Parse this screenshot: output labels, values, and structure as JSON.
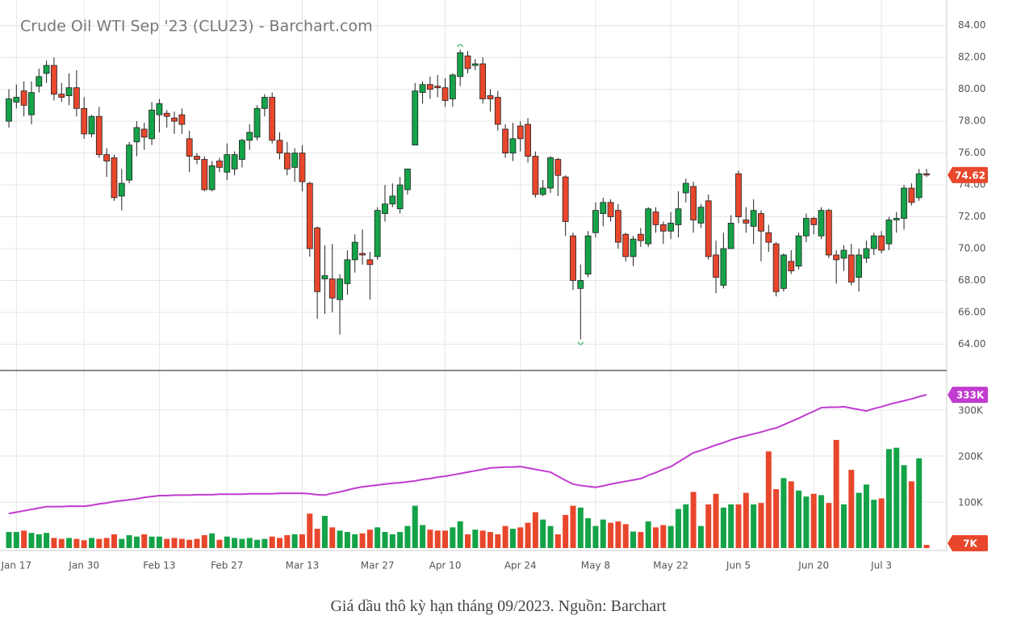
{
  "chart_data": {
    "type": "candlestick",
    "title": "Crude Oil WTI Sep '23 (CLU23) - Barchart.com",
    "x": [
      null,
      "Jan 17",
      null,
      null,
      null,
      null,
      null,
      null,
      null,
      null,
      "Jan 30",
      null,
      null,
      null,
      null,
      null,
      null,
      null,
      null,
      null,
      "Feb 13",
      null,
      null,
      null,
      null,
      null,
      null,
      null,
      null,
      "Feb 27",
      null,
      null,
      null,
      null,
      null,
      null,
      null,
      null,
      null,
      "Mar 13",
      null,
      null,
      null,
      null,
      null,
      null,
      null,
      null,
      null,
      "Mar 27",
      null,
      null,
      null,
      null,
      null,
      null,
      null,
      null,
      "Apr 10",
      null,
      null,
      null,
      null,
      null,
      null,
      null,
      null,
      null,
      "Apr 24",
      null,
      null,
      null,
      null,
      null,
      null,
      null,
      null,
      null,
      "May 8",
      null,
      null,
      null,
      null,
      null,
      null,
      null,
      null,
      null,
      "May 22",
      null,
      null,
      null,
      null,
      null,
      null,
      null,
      null,
      "Jun 5",
      null,
      null,
      null,
      null,
      null,
      null,
      null,
      null,
      null,
      "Jun 20",
      null,
      null,
      null,
      null,
      null,
      null,
      null,
      null,
      "Jul 3",
      null,
      null,
      null,
      null,
      null,
      null
    ],
    "open": [
      78.0,
      79.2,
      79.9,
      78.4,
      80.2,
      81.0,
      81.5,
      79.7,
      79.6,
      80.1,
      78.8,
      77.2,
      78.3,
      75.9,
      75.7,
      73.3,
      74.3,
      76.7,
      77.5,
      76.9,
      78.4,
      78.5,
      78.2,
      78.4,
      76.9,
      75.8,
      75.6,
      73.7,
      75.5,
      74.8,
      75.0,
      75.6,
      76.8,
      77.0,
      78.8,
      79.5,
      76.8,
      76.0,
      75.1,
      76.0,
      74.1,
      71.3,
      68.1,
      68.1,
      66.8,
      67.8,
      69.3,
      69.7,
      69.3,
      69.5,
      72.2,
      72.8,
      72.5,
      73.7,
      76.5,
      79.8,
      80.3,
      80.2,
      80.1,
      79.4,
      80.8,
      82.1,
      81.5,
      81.6,
      79.6,
      79.5,
      77.5,
      76.0,
      77.7,
      77.8,
      75.8,
      73.4,
      73.8,
      75.6,
      74.5,
      70.8,
      67.5,
      68.4,
      71.0,
      72.2,
      72.9,
      72.4,
      70.9,
      69.5,
      70.9,
      70.3,
      72.3,
      71.5,
      71.1,
      71.5,
      73.5,
      73.9,
      71.6,
      73.0,
      69.6,
      67.7,
      70.0,
      74.7,
      71.8,
      71.4,
      72.2,
      71.0,
      70.3,
      67.5,
      69.2,
      68.9,
      70.8,
      71.9,
      70.8,
      72.4,
      69.6,
      69.4,
      69.6,
      68.2,
      69.4,
      70.0,
      70.8,
      70.3,
      71.8,
      71.9,
      73.8,
      73.2,
      74.7
    ],
    "high": [
      80.0,
      80.3,
      80.5,
      80.5,
      81.3,
      81.8,
      82.0,
      80.4,
      81.0,
      81.2,
      79.5,
      78.4,
      78.9,
      76.3,
      75.9,
      75.0,
      76.7,
      78.0,
      77.9,
      79.2,
      79.4,
      78.7,
      78.6,
      78.8,
      77.4,
      76.0,
      75.8,
      75.5,
      75.7,
      76.6,
      76.1,
      76.9,
      77.8,
      79.0,
      79.7,
      79.8,
      77.3,
      76.7,
      76.3,
      76.5,
      74.2,
      71.4,
      70.2,
      70.3,
      68.4,
      69.9,
      70.9,
      71.2,
      69.8,
      72.6,
      74.0,
      74.1,
      74.5,
      75.0,
      80.4,
      80.5,
      80.8,
      80.9,
      80.7,
      81.0,
      82.5,
      82.4,
      81.9,
      82.0,
      80.0,
      79.9,
      77.8,
      77.9,
      78.0,
      78.2,
      76.1,
      74.3,
      75.8,
      75.7,
      74.6,
      71.0,
      69.0,
      71.1,
      72.9,
      73.2,
      73.1,
      72.8,
      71.0,
      70.8,
      71.3,
      72.6,
      72.6,
      71.7,
      72.3,
      73.6,
      74.4,
      74.2,
      72.8,
      73.4,
      70.5,
      71.0,
      72.1,
      74.9,
      72.6,
      73.1,
      72.4,
      71.5,
      70.4,
      69.7,
      69.9,
      71.0,
      72.2,
      72.0,
      72.6,
      72.5,
      69.9,
      70.2,
      70.3,
      70.0,
      70.5,
      71.0,
      71.1,
      72.0,
      72.3,
      74.0,
      74.1,
      75.0,
      75.0
    ],
    "low": [
      77.6,
      78.8,
      78.3,
      77.8,
      79.8,
      80.4,
      79.3,
      79.2,
      79.0,
      78.3,
      76.9,
      77.0,
      75.7,
      74.5,
      73.0,
      72.4,
      74.1,
      75.8,
      76.2,
      76.5,
      77.3,
      77.6,
      77.2,
      77.2,
      74.8,
      75.3,
      73.6,
      73.6,
      74.8,
      74.3,
      74.6,
      75.1,
      76.2,
      76.8,
      78.3,
      76.6,
      75.6,
      74.6,
      74.2,
      73.6,
      69.5,
      65.6,
      65.9,
      66.0,
      64.6,
      67.1,
      68.5,
      69.0,
      66.8,
      69.3,
      71.7,
      72.6,
      72.2,
      73.4,
      76.5,
      79.1,
      79.4,
      79.5,
      78.9,
      78.9,
      80.2,
      81.0,
      81.2,
      79.1,
      78.6,
      77.4,
      75.7,
      75.5,
      76.1,
      75.4,
      73.2,
      73.3,
      73.5,
      73.3,
      70.8,
      67.4,
      64.3,
      68.2,
      70.7,
      71.4,
      71.7,
      70.0,
      69.2,
      68.9,
      70.1,
      70.1,
      71.0,
      70.3,
      70.6,
      70.7,
      72.9,
      71.0,
      71.3,
      69.3,
      67.2,
      67.5,
      70.0,
      71.6,
      71.0,
      70.3,
      69.2,
      69.8,
      67.0,
      67.3,
      68.4,
      68.7,
      70.4,
      70.9,
      70.6,
      69.4,
      67.8,
      68.6,
      67.7,
      67.3,
      69.1,
      69.6,
      69.7,
      69.9,
      71.0,
      71.2,
      72.7,
      73.0,
      74.5
    ],
    "close": [
      79.4,
      79.5,
      79.0,
      79.8,
      80.8,
      81.5,
      79.7,
      79.5,
      80.1,
      78.8,
      77.2,
      78.3,
      75.9,
      75.5,
      73.2,
      74.1,
      76.5,
      77.6,
      77.0,
      78.7,
      79.1,
      78.3,
      78.0,
      77.8,
      75.8,
      75.6,
      73.7,
      75.2,
      75.1,
      75.9,
      75.9,
      76.8,
      77.3,
      78.8,
      79.5,
      76.8,
      76.0,
      75.0,
      76.0,
      74.2,
      70.0,
      67.3,
      68.3,
      66.9,
      68.1,
      69.3,
      70.4,
      69.6,
      69.0,
      72.4,
      72.8,
      73.3,
      74.0,
      75.0,
      79.9,
      80.3,
      80.0,
      80.1,
      79.3,
      80.9,
      82.3,
      81.3,
      81.6,
      79.4,
      79.4,
      77.8,
      76.0,
      76.9,
      76.9,
      75.8,
      73.4,
      73.8,
      75.7,
      74.6,
      71.7,
      68.0,
      68.0,
      70.8,
      72.4,
      72.9,
      72.0,
      70.4,
      69.5,
      70.6,
      70.5,
      72.5,
      71.5,
      71.1,
      71.6,
      72.5,
      74.1,
      71.8,
      72.6,
      69.5,
      68.2,
      70.0,
      71.6,
      72.0,
      71.6,
      72.4,
      71.1,
      70.4,
      67.3,
      69.6,
      68.6,
      70.8,
      71.9,
      71.5,
      72.4,
      69.6,
      69.3,
      69.9,
      67.9,
      69.6,
      70.0,
      70.8,
      69.9,
      71.8,
      71.9,
      73.8,
      72.9,
      74.7,
      74.62
    ],
    "up_color": "#14a348",
    "down_color": "#e8472c",
    "ylim": [
      62.4,
      85.1
    ],
    "yticks": [
      {
        "value": 64,
        "label": "64.00"
      },
      {
        "value": 66,
        "label": "66.00"
      },
      {
        "value": 68,
        "label": "68.00"
      },
      {
        "value": 70,
        "label": "70.00"
      },
      {
        "value": 72,
        "label": "72.00"
      },
      {
        "value": 74,
        "label": "74.00"
      },
      {
        "value": 76,
        "label": "76.00"
      },
      {
        "value": 78,
        "label": "78.00"
      },
      {
        "value": 80,
        "label": "80.00"
      },
      {
        "value": 82,
        "label": "82.00"
      },
      {
        "value": 84,
        "label": "84.00"
      }
    ],
    "grid": true,
    "volume": {
      "values": [
        35,
        35,
        38,
        33,
        30,
        33,
        22,
        20,
        22,
        20,
        17,
        22,
        20,
        22,
        30,
        20,
        28,
        25,
        30,
        25,
        25,
        20,
        22,
        20,
        18,
        20,
        28,
        32,
        18,
        25,
        22,
        20,
        22,
        18,
        20,
        25,
        22,
        28,
        30,
        30,
        75,
        42,
        70,
        45,
        38,
        35,
        30,
        32,
        40,
        45,
        35,
        30,
        35,
        48,
        92,
        50,
        40,
        38,
        38,
        45,
        58,
        30,
        40,
        38,
        35,
        30,
        48,
        42,
        45,
        55,
        78,
        62,
        48,
        30,
        72,
        92,
        88,
        65,
        48,
        62,
        55,
        58,
        52,
        36,
        35,
        58,
        45,
        50,
        48,
        85,
        95,
        122,
        48,
        95,
        118,
        88,
        95,
        95,
        120,
        95,
        98,
        210,
        128,
        152,
        145,
        125,
        112,
        118,
        115,
        98,
        235,
        95,
        170,
        120,
        138,
        105,
        108,
        215,
        218,
        180,
        145,
        195,
        7
      ],
      "value_labels": [
        null,
        null,
        null,
        null,
        null,
        null,
        null,
        null,
        null,
        null,
        null,
        null,
        null,
        null,
        null,
        null,
        null,
        null,
        null,
        null,
        null,
        null,
        null,
        null,
        null,
        null,
        null,
        null,
        null,
        null,
        null,
        null,
        null,
        null,
        null,
        null,
        null,
        null,
        null,
        null,
        null,
        null,
        null,
        null,
        null,
        null,
        null,
        null,
        null,
        null,
        null,
        null,
        null,
        null,
        null,
        null,
        null,
        null,
        null,
        null,
        null,
        null,
        null,
        null,
        null,
        null,
        null,
        null,
        null,
        null,
        null,
        null,
        null,
        null,
        null,
        null,
        null,
        null,
        null,
        null,
        null,
        null,
        null,
        null,
        null,
        null,
        null,
        null,
        null,
        null,
        null,
        null,
        null,
        null,
        null,
        null,
        null,
        null,
        null,
        null,
        null,
        null,
        null,
        null,
        null,
        null,
        null,
        null,
        null,
        null,
        null,
        null,
        null,
        null,
        null,
        null,
        null,
        null,
        null,
        null,
        null,
        null,
        "7K"
      ],
      "ylim": [
        0,
        384
      ],
      "yticks": [
        {
          "value": 100,
          "label": "100K"
        },
        {
          "value": 200,
          "label": "200K"
        },
        {
          "value": 300,
          "label": "300K"
        }
      ]
    },
    "line": {
      "color": "#c13bd0",
      "values": [
        75,
        78,
        81,
        84,
        87,
        90,
        90,
        90,
        91,
        91,
        91,
        93,
        96,
        98,
        101,
        103,
        105,
        107,
        110,
        112,
        114,
        114,
        115,
        115,
        115,
        116,
        116,
        116,
        117,
        117,
        117,
        117,
        118,
        118,
        118,
        118,
        119,
        119,
        119,
        119,
        118,
        116,
        115,
        119,
        122,
        126,
        130,
        133,
        135,
        137,
        139,
        141,
        142,
        144,
        146,
        149,
        151,
        154,
        156,
        159,
        162,
        165,
        168,
        171,
        174,
        175,
        176,
        176,
        177,
        174,
        171,
        168,
        165,
        156,
        147,
        139,
        136,
        134,
        132,
        135,
        139,
        142,
        145,
        148,
        151,
        158,
        164,
        171,
        177,
        187,
        197,
        207,
        212,
        218,
        224,
        229,
        235,
        240,
        244,
        248,
        252,
        257,
        261,
        268,
        275,
        282,
        290,
        297,
        305,
        306,
        306,
        307,
        304,
        301,
        298,
        303,
        307,
        312,
        316,
        320,
        324,
        329,
        333
      ],
      "value_labels": [
        null,
        null,
        null,
        null,
        null,
        null,
        null,
        null,
        null,
        null,
        null,
        null,
        null,
        null,
        null,
        null,
        null,
        null,
        null,
        null,
        null,
        null,
        null,
        null,
        null,
        null,
        null,
        null,
        null,
        null,
        null,
        null,
        null,
        null,
        null,
        null,
        null,
        null,
        null,
        null,
        null,
        null,
        null,
        null,
        null,
        null,
        null,
        null,
        null,
        null,
        null,
        null,
        null,
        null,
        null,
        null,
        null,
        null,
        null,
        null,
        null,
        null,
        null,
        null,
        null,
        null,
        null,
        null,
        null,
        null,
        null,
        null,
        null,
        null,
        null,
        null,
        null,
        null,
        null,
        null,
        null,
        null,
        null,
        null,
        null,
        null,
        null,
        null,
        null,
        null,
        null,
        null,
        null,
        null,
        null,
        null,
        null,
        null,
        null,
        null,
        null,
        null,
        null,
        null,
        null,
        null,
        null,
        null,
        null,
        null,
        null,
        null,
        null,
        null,
        null,
        null,
        null,
        null,
        null,
        null,
        null,
        null,
        "333K"
      ]
    }
  },
  "caption": "Giá dầu thô kỳ hạn tháng 09/2023. Nguồn: Barchart"
}
